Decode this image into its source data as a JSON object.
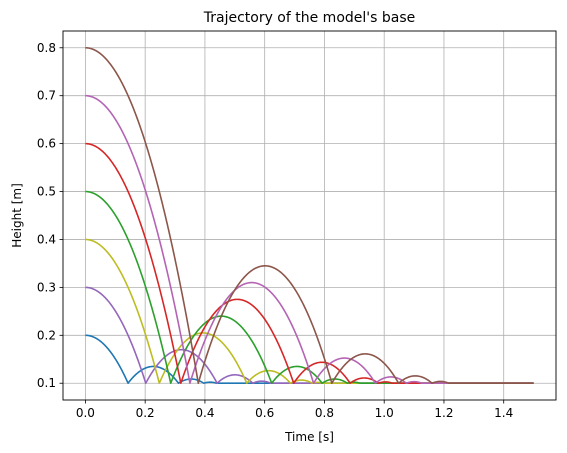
{
  "chart_data": {
    "type": "line",
    "title": "Trajectory of the model's base",
    "xlabel": "Time [s]",
    "ylabel": "Height [m]",
    "xlim": [
      -0.075,
      1.575
    ],
    "ylim": [
      0.065,
      0.835
    ],
    "xticks": [
      0.0,
      0.2,
      0.4,
      0.6,
      0.8,
      1.0,
      1.2,
      1.4
    ],
    "xtick_labels": [
      "0.0",
      "0.2",
      "0.4",
      "0.6",
      "0.8",
      "1.0",
      "1.2",
      "1.4"
    ],
    "yticks": [
      0.1,
      0.2,
      0.3,
      0.4,
      0.5,
      0.6,
      0.7,
      0.8
    ],
    "ytick_labels": [
      "0.1",
      "0.2",
      "0.3",
      "0.4",
      "0.5",
      "0.6",
      "0.7",
      "0.8"
    ],
    "grid": true,
    "x_end": 1.5,
    "rest_height": 0.1,
    "series": [
      {
        "initial_height": 0.2,
        "color": "#1f77b4"
      },
      {
        "initial_height": 0.3,
        "color": "#9467bd"
      },
      {
        "initial_height": 0.4,
        "color": "#bcbd22"
      },
      {
        "initial_height": 0.5,
        "color": "#2ca02c"
      },
      {
        "initial_height": 0.6,
        "color": "#d62728"
      },
      {
        "initial_height": 0.7,
        "color": "#b464b4"
      },
      {
        "initial_height": 0.8,
        "color": "#8c564b"
      }
    ]
  }
}
